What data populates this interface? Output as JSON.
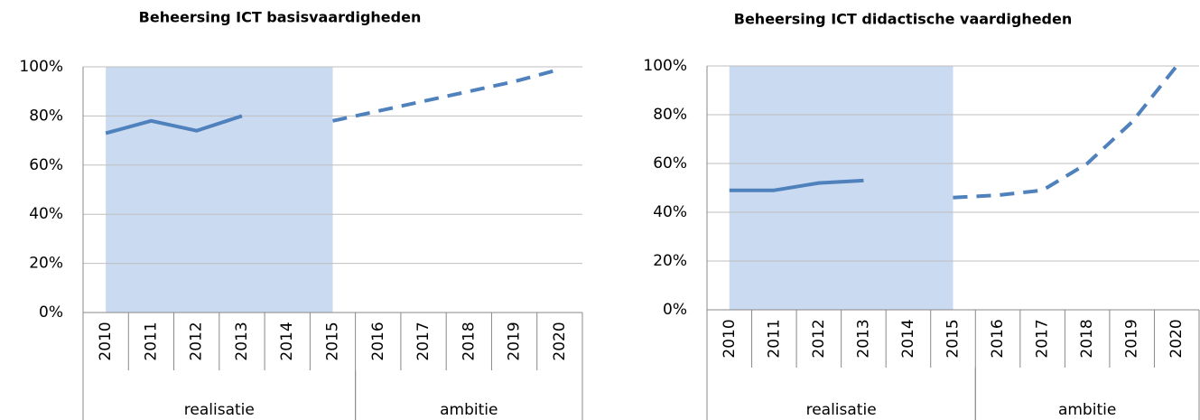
{
  "chart_data": [
    {
      "type": "line",
      "title": "Beheersing ICT basisvaardigheden",
      "categories": [
        "2010",
        "2011",
        "2012",
        "2013",
        "2014",
        "2015",
        "2016",
        "2017",
        "2018",
        "2019",
        "2020"
      ],
      "groups": [
        {
          "label": "realisatie",
          "start": "2010",
          "end": "2015"
        },
        {
          "label": "ambitie",
          "start": "2016",
          "end": "2020"
        }
      ],
      "highlight": {
        "start": "2010",
        "end": "2015",
        "color": "#c9daf1"
      },
      "series": [
        {
          "color": "#4f81bd",
          "dashed": false,
          "values": [
            73,
            78,
            74,
            80,
            null,
            78,
            null,
            null,
            null,
            null,
            null
          ]
        },
        {
          "color": "#4f81bd",
          "dashed": true,
          "values": [
            null,
            null,
            null,
            null,
            null,
            78,
            82,
            86,
            90,
            94,
            99
          ]
        }
      ],
      "ylim": [
        0,
        100
      ],
      "yticks": [
        {
          "value": 0,
          "label": "0%"
        },
        {
          "value": 20,
          "label": "20%"
        },
        {
          "value": 40,
          "label": "40%"
        },
        {
          "value": 60,
          "label": "60%"
        },
        {
          "value": 80,
          "label": "80%"
        },
        {
          "value": 100,
          "label": "100%"
        }
      ],
      "grid": true
    },
    {
      "type": "line",
      "title": "Beheersing ICT didactische vaardigheden",
      "categories": [
        "2010",
        "2011",
        "2012",
        "2013",
        "2014",
        "2015",
        "2016",
        "2017",
        "2018",
        "2019",
        "2020"
      ],
      "groups": [
        {
          "label": "realisatie",
          "start": "2010",
          "end": "2015"
        },
        {
          "label": "ambitie",
          "start": "2016",
          "end": "2020"
        }
      ],
      "highlight": {
        "start": "2010",
        "end": "2015",
        "color": "#c9daf1"
      },
      "series": [
        {
          "color": "#4f81bd",
          "dashed": false,
          "values": [
            49,
            49,
            52,
            53,
            null,
            46,
            null,
            null,
            null,
            null,
            null
          ]
        },
        {
          "color": "#4f81bd",
          "dashed": true,
          "values": [
            null,
            null,
            null,
            null,
            null,
            46,
            47,
            49,
            60,
            77,
            100
          ]
        }
      ],
      "ylim": [
        0,
        100
      ],
      "yticks": [
        {
          "value": 0,
          "label": "0%"
        },
        {
          "value": 20,
          "label": "20%"
        },
        {
          "value": 40,
          "label": "40%"
        },
        {
          "value": 60,
          "label": "60%"
        },
        {
          "value": 80,
          "label": "80%"
        },
        {
          "value": 100,
          "label": "100%"
        }
      ],
      "grid": true
    }
  ]
}
